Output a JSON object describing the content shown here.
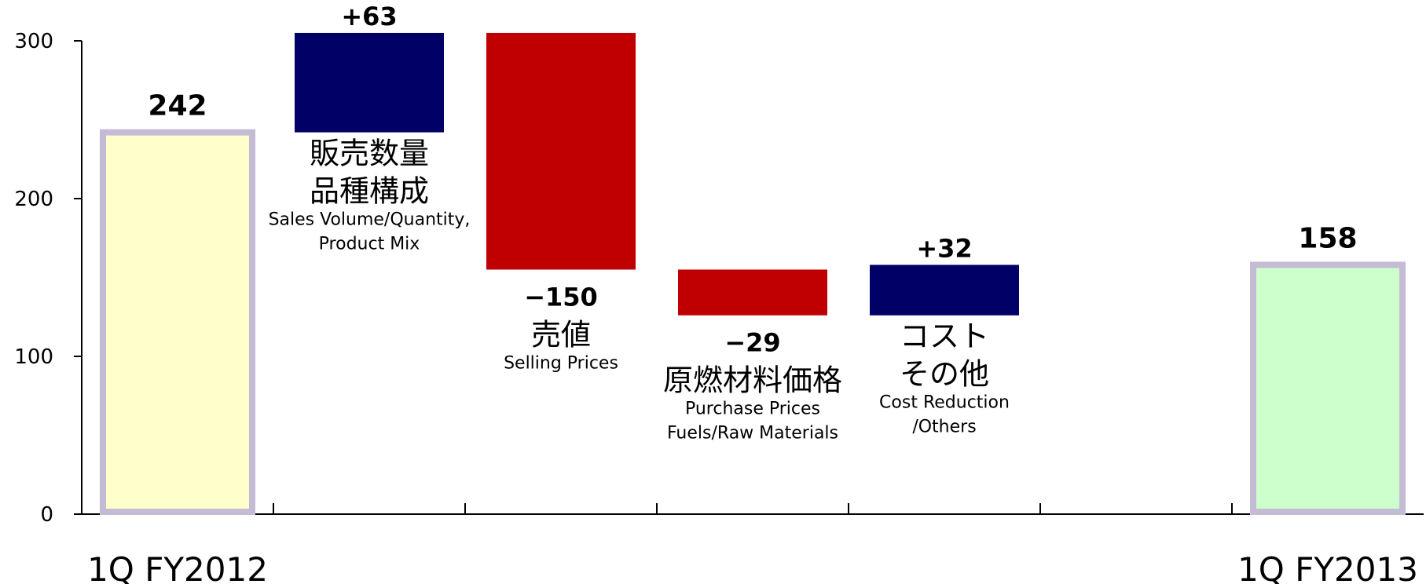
{
  "chart_data": {
    "type": "bar",
    "subtype": "waterfall",
    "ylim": [
      0,
      300
    ],
    "yticks": [
      0,
      100,
      200,
      300
    ],
    "grid": false,
    "colors": {
      "increase": "#000066",
      "decrease": "#C00000",
      "start_fill": "#FFFFCC",
      "end_fill": "#CCFFCC",
      "total_border": "#C4BCD4"
    },
    "start": {
      "label": "1Q FY2012",
      "value": 242,
      "value_label": "242"
    },
    "end": {
      "label": "1Q FY2013",
      "value": 158,
      "value_label": "158"
    },
    "steps": [
      {
        "value": 63,
        "value_label": "+63",
        "jp_label": [
          "販売数量",
          "品種構成"
        ],
        "en_label": [
          "Sales Volume/Quantity,",
          "Product Mix"
        ]
      },
      {
        "value": -150,
        "value_label": "−150",
        "jp_label": [
          "売値"
        ],
        "en_label": [
          "Selling  Prices"
        ]
      },
      {
        "value": -29,
        "value_label": "−29",
        "jp_label": [
          "原燃材料価格"
        ],
        "en_label": [
          "Purchase Prices",
          "Fuels/Raw Materials"
        ]
      },
      {
        "value": 32,
        "value_label": "+32",
        "jp_label": [
          "コスト",
          "その他"
        ],
        "en_label": [
          "Cost Reduction",
          "/Others"
        ]
      }
    ]
  }
}
